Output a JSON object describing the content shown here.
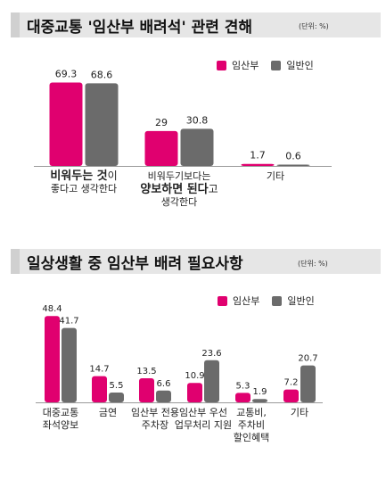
{
  "chart_data": [
    {
      "type": "bar",
      "title": "대중교통 '임산부 배려석' 관련 견해",
      "unit": "(단위: %)",
      "categories": [
        "비워두는 것이 좋다고 생각한다",
        "비워두기보다는 양보하면 된다고 생각한다",
        "기타"
      ],
      "series": [
        {
          "name": "임산부",
          "color": "#e0006f",
          "values": [
            69.3,
            29,
            1.7
          ]
        },
        {
          "name": "일반인",
          "color": "#6b6b6b",
          "values": [
            68.6,
            30.8,
            0.6
          ]
        }
      ],
      "legend_position": "top-right",
      "grid": false
    },
    {
      "type": "bar",
      "title": "일상생활 중 임산부 배려 필요사항",
      "unit": "(단위: %)",
      "categories": [
        "대중교통 좌석양보",
        "금연",
        "임산부 전용 주차장",
        "임산부 우선 업무처리 지원",
        "교통비, 주차비 할인혜택",
        "기타"
      ],
      "series": [
        {
          "name": "임산부",
          "color": "#e0006f",
          "values": [
            48.4,
            14.7,
            13.5,
            10.9,
            5.3,
            7.2
          ]
        },
        {
          "name": "일반인",
          "color": "#6b6b6b",
          "values": [
            41.7,
            5.5,
            6.6,
            23.6,
            1.9,
            20.7
          ]
        }
      ],
      "legend_position": "top-right",
      "grid": false
    }
  ],
  "chart1_xlabels": [
    {
      "bold": "비워두는 것",
      "rest": "이",
      "line2": "좋다고 생각한다"
    },
    {
      "line1": "비워두기보다는",
      "bold": "양보하면 된다",
      "rest": "고",
      "line3": "생각한다"
    },
    {
      "line1": "기타"
    }
  ],
  "chart2_xlabels": [
    [
      "대중교통",
      "좌석양보"
    ],
    [
      "금연"
    ],
    [
      "임산부 전용",
      "주차장"
    ],
    [
      "임산부 우선",
      "업무처리 지원"
    ],
    [
      "교통비,",
      "주차비",
      "할인혜택"
    ],
    [
      "기타"
    ]
  ]
}
